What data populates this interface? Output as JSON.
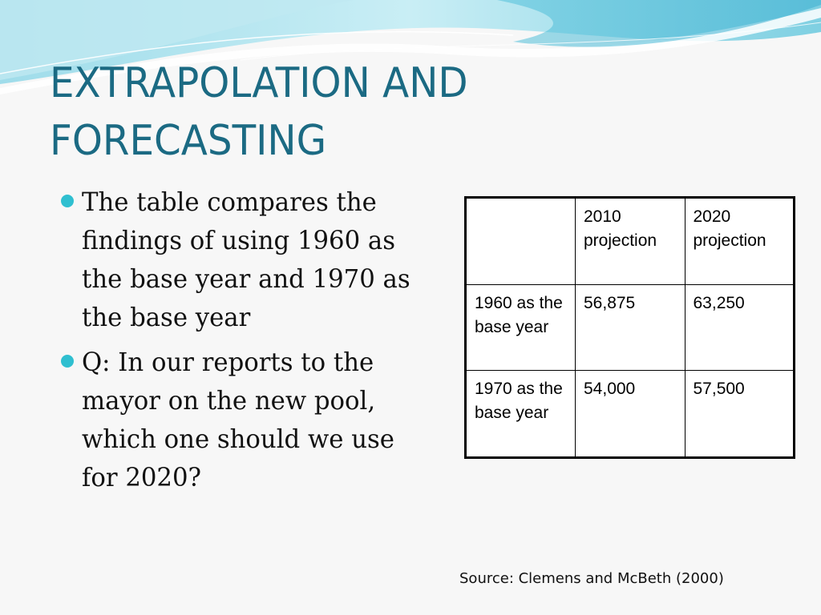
{
  "slide": {
    "title_line1": "EXTRAPOLATION AND",
    "title_line2": "FORECASTING",
    "bullets": [
      {
        "text": "The table compares the findings of using 1960 as the base year and 1970 as the base year"
      },
      {
        "text": "Q: In our reports to the mayor on the new pool, which one should we use for 2020?"
      }
    ],
    "table": {
      "header": [
        "",
        "2010 projection",
        "2020 projection"
      ],
      "rows": [
        [
          "1960 as the base year",
          "56,875",
          "63,250"
        ],
        [
          "1970 as the base year",
          "54,000",
          "57,500"
        ]
      ]
    },
    "source": "Source: Clemens and McBeth (2000)"
  },
  "colors": {
    "title": "#1b6a83",
    "bullet": "#2fbfd0",
    "wave_light": "#d9f2f7",
    "wave_mid": "#8fd8e6",
    "wave_dark": "#3aaed0"
  }
}
